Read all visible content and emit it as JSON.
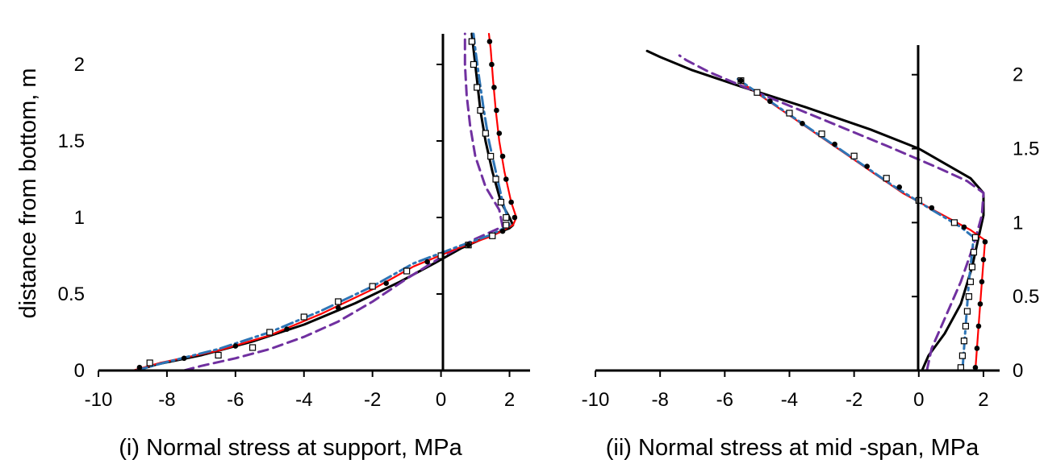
{
  "chart_data": [
    {
      "type": "line",
      "title": "",
      "xlabel": "(i) Normal stress at support, MPa",
      "ylabel": "distance from bottom, m",
      "xlim": [
        -10,
        2.6
      ],
      "ylim": [
        0,
        2.2
      ],
      "x_ticks": [
        -10,
        -8,
        -6,
        -4,
        -2,
        0,
        2
      ],
      "y_ticks": [
        0,
        0.5,
        1,
        1.5,
        2
      ],
      "x_tick_labels": [
        "-10",
        "-8",
        "-6",
        "-4",
        "-2",
        "0",
        "2"
      ],
      "y_tick_labels": [
        "0",
        "0.5",
        "1",
        "1.5",
        "2"
      ],
      "grid": false,
      "legend": "none",
      "series": [
        {
          "style": "solid",
          "color": "#000000",
          "points": [
            [
              -8.9,
              0
            ],
            [
              -8.3,
              0.04
            ],
            [
              -7.0,
              0.1
            ],
            [
              -5.5,
              0.19
            ],
            [
              -4.0,
              0.3
            ],
            [
              -2.5,
              0.44
            ],
            [
              -1.2,
              0.58
            ],
            [
              -0.2,
              0.7
            ],
            [
              0.6,
              0.8
            ],
            [
              1.3,
              0.87
            ],
            [
              2.0,
              0.93
            ],
            [
              2.1,
              0.95
            ],
            [
              2.0,
              1.0
            ],
            [
              1.75,
              1.1
            ],
            [
              1.5,
              1.3
            ],
            [
              1.3,
              1.5
            ],
            [
              1.15,
              1.7
            ],
            [
              1.05,
              1.9
            ],
            [
              0.95,
              2.1
            ],
            [
              0.9,
              2.2
            ]
          ]
        },
        {
          "style": "dashed",
          "color": "#7030A0",
          "points": [
            [
              -7.5,
              0
            ],
            [
              -7.0,
              0.03
            ],
            [
              -6.0,
              0.08
            ],
            [
              -5.0,
              0.14
            ],
            [
              -4.0,
              0.22
            ],
            [
              -3.0,
              0.32
            ],
            [
              -2.0,
              0.45
            ],
            [
              -1.0,
              0.6
            ],
            [
              0.0,
              0.74
            ],
            [
              1.0,
              0.86
            ],
            [
              1.8,
              0.94
            ],
            [
              1.7,
              1.05
            ],
            [
              1.3,
              1.2
            ],
            [
              1.0,
              1.4
            ],
            [
              0.85,
              1.6
            ],
            [
              0.75,
              1.8
            ],
            [
              0.7,
              2.0
            ],
            [
              0.7,
              2.2
            ]
          ]
        },
        {
          "style": "solid",
          "color": "#FF0000",
          "points": [
            [
              -9.0,
              0
            ],
            [
              -8.2,
              0.05
            ],
            [
              -6.5,
              0.13
            ],
            [
              -5.0,
              0.23
            ],
            [
              -3.5,
              0.37
            ],
            [
              -2.0,
              0.53
            ],
            [
              -0.8,
              0.68
            ],
            [
              0.5,
              0.8
            ],
            [
              1.5,
              0.88
            ],
            [
              2.1,
              0.95
            ],
            [
              2.2,
              1.0
            ],
            [
              2.05,
              1.1
            ],
            [
              1.85,
              1.3
            ],
            [
              1.7,
              1.5
            ],
            [
              1.6,
              1.7
            ],
            [
              1.52,
              1.9
            ],
            [
              1.45,
              2.1
            ],
            [
              1.4,
              2.2
            ]
          ]
        },
        {
          "style": "dashdot",
          "color": "#2E75B6",
          "points": [
            [
              -8.9,
              0
            ],
            [
              -8.1,
              0.05
            ],
            [
              -6.5,
              0.14
            ],
            [
              -5.0,
              0.25
            ],
            [
              -3.5,
              0.39
            ],
            [
              -2.0,
              0.55
            ],
            [
              -0.8,
              0.7
            ],
            [
              0.5,
              0.81
            ],
            [
              1.5,
              0.89
            ],
            [
              2.0,
              0.95
            ],
            [
              1.95,
              1.0
            ],
            [
              1.8,
              1.1
            ],
            [
              1.6,
              1.3
            ],
            [
              1.4,
              1.5
            ],
            [
              1.25,
              1.7
            ],
            [
              1.12,
              1.9
            ],
            [
              1.0,
              2.1
            ],
            [
              0.95,
              2.2
            ]
          ]
        },
        {
          "style": "markers-open-square",
          "color": "#000000",
          "points": [
            [
              -8.5,
              0.05
            ],
            [
              -6.5,
              0.1
            ],
            [
              -5.5,
              0.15
            ],
            [
              -5.0,
              0.25
            ],
            [
              -4.0,
              0.35
            ],
            [
              -3.0,
              0.45
            ],
            [
              -2.0,
              0.55
            ],
            [
              -1.0,
              0.65
            ],
            [
              0.0,
              0.75
            ],
            [
              0.8,
              0.82
            ],
            [
              1.5,
              0.88
            ],
            [
              1.9,
              0.95
            ],
            [
              1.9,
              1.0
            ],
            [
              1.75,
              1.1
            ],
            [
              1.6,
              1.25
            ],
            [
              1.45,
              1.4
            ],
            [
              1.3,
              1.55
            ],
            [
              1.15,
              1.7
            ],
            [
              1.05,
              1.85
            ],
            [
              0.95,
              2.0
            ],
            [
              0.9,
              2.15
            ]
          ]
        },
        {
          "style": "markers-filled-circle",
          "color": "#000000",
          "points": [
            [
              -8.8,
              0.02
            ],
            [
              -7.5,
              0.08
            ],
            [
              -6.0,
              0.16
            ],
            [
              -4.5,
              0.27
            ],
            [
              -3.0,
              0.41
            ],
            [
              -1.6,
              0.57
            ],
            [
              -0.4,
              0.71
            ],
            [
              0.8,
              0.82
            ],
            [
              1.8,
              0.91
            ],
            [
              2.15,
              1.0
            ],
            [
              2.05,
              1.1
            ],
            [
              1.9,
              1.25
            ],
            [
              1.8,
              1.4
            ],
            [
              1.7,
              1.55
            ],
            [
              1.62,
              1.7
            ],
            [
              1.55,
              1.85
            ],
            [
              1.48,
              2.0
            ],
            [
              1.42,
              2.15
            ]
          ]
        }
      ]
    },
    {
      "type": "line",
      "title": "",
      "xlabel": "(ii) Normal stress at mid -span, MPa",
      "ylabel": "",
      "xlim": [
        -10,
        2.5
      ],
      "ylim": [
        0,
        2.2
      ],
      "x_ticks": [
        -10,
        -8,
        -6,
        -4,
        -2,
        0,
        2
      ],
      "y_ticks": [
        0,
        0.5,
        1,
        1.5,
        2
      ],
      "x_tick_labels": [
        "-10",
        "-8",
        "-6",
        "-4",
        "-2",
        "0",
        "2"
      ],
      "y_tick_labels": [
        "0",
        "0.5",
        "1",
        "1.5",
        "2"
      ],
      "grid": false,
      "legend": "none",
      "series": [
        {
          "style": "solid",
          "color": "#000000",
          "points": [
            [
              0.1,
              0
            ],
            [
              0.3,
              0.1
            ],
            [
              0.8,
              0.25
            ],
            [
              1.3,
              0.45
            ],
            [
              1.65,
              0.7
            ],
            [
              1.85,
              0.9
            ],
            [
              2.0,
              1.05
            ],
            [
              2.0,
              1.2
            ],
            [
              1.6,
              1.3
            ],
            [
              0.8,
              1.4
            ],
            [
              0.0,
              1.5
            ],
            [
              -1.5,
              1.63
            ],
            [
              -3.5,
              1.78
            ],
            [
              -5.5,
              1.92
            ],
            [
              -7.0,
              2.03
            ],
            [
              -8.0,
              2.12
            ],
            [
              -8.4,
              2.16
            ]
          ]
        },
        {
          "style": "dashed",
          "color": "#7030A0",
          "points": [
            [
              0.25,
              0
            ],
            [
              0.4,
              0.15
            ],
            [
              0.8,
              0.35
            ],
            [
              1.3,
              0.6
            ],
            [
              1.7,
              0.85
            ],
            [
              1.95,
              1.05
            ],
            [
              2.0,
              1.2
            ],
            [
              1.5,
              1.28
            ],
            [
              0.5,
              1.38
            ],
            [
              -1.0,
              1.52
            ],
            [
              -3.0,
              1.7
            ],
            [
              -5.0,
              1.88
            ],
            [
              -6.5,
              2.02
            ],
            [
              -7.2,
              2.1
            ],
            [
              -7.4,
              2.13
            ]
          ]
        },
        {
          "style": "solid",
          "color": "#FF0000",
          "points": [
            [
              1.75,
              0
            ],
            [
              1.85,
              0.3
            ],
            [
              1.95,
              0.6
            ],
            [
              2.05,
              0.88
            ],
            [
              1.6,
              0.95
            ],
            [
              0.5,
              1.08
            ],
            [
              -0.5,
              1.2
            ],
            [
              -1.5,
              1.35
            ],
            [
              -2.5,
              1.5
            ],
            [
              -3.5,
              1.65
            ],
            [
              -4.5,
              1.8
            ],
            [
              -5.5,
              1.95
            ],
            [
              -5.6,
              1.97
            ]
          ]
        },
        {
          "style": "dashdot",
          "color": "#2E75B6",
          "points": [
            [
              1.35,
              0
            ],
            [
              1.45,
              0.3
            ],
            [
              1.55,
              0.6
            ],
            [
              1.7,
              0.9
            ],
            [
              1.3,
              0.97
            ],
            [
              0.3,
              1.1
            ],
            [
              -0.8,
              1.25
            ],
            [
              -1.8,
              1.4
            ],
            [
              -2.8,
              1.55
            ],
            [
              -3.8,
              1.7
            ],
            [
              -4.8,
              1.85
            ],
            [
              -5.6,
              1.97
            ]
          ]
        },
        {
          "style": "markers-open-square",
          "color": "#000000",
          "points": [
            [
              1.3,
              0.02
            ],
            [
              1.35,
              0.1
            ],
            [
              1.4,
              0.2
            ],
            [
              1.45,
              0.3
            ],
            [
              1.5,
              0.4
            ],
            [
              1.55,
              0.5
            ],
            [
              1.6,
              0.6
            ],
            [
              1.65,
              0.7
            ],
            [
              1.7,
              0.8
            ],
            [
              1.75,
              0.9
            ],
            [
              1.1,
              1.0
            ],
            [
              0.0,
              1.15
            ],
            [
              -1.0,
              1.3
            ],
            [
              -2.0,
              1.45
            ],
            [
              -3.0,
              1.6
            ],
            [
              -4.0,
              1.74
            ],
            [
              -5.0,
              1.88
            ],
            [
              -5.5,
              1.96
            ]
          ]
        },
        {
          "style": "markers-filled-circle",
          "color": "#000000",
          "points": [
            [
              1.75,
              0.02
            ],
            [
              1.8,
              0.15
            ],
            [
              1.85,
              0.3
            ],
            [
              1.9,
              0.45
            ],
            [
              1.95,
              0.6
            ],
            [
              2.0,
              0.75
            ],
            [
              2.05,
              0.87
            ],
            [
              1.4,
              0.97
            ],
            [
              0.4,
              1.1
            ],
            [
              -0.6,
              1.24
            ],
            [
              -1.6,
              1.38
            ],
            [
              -2.6,
              1.53
            ],
            [
              -3.6,
              1.67
            ],
            [
              -4.6,
              1.82
            ],
            [
              -5.5,
              1.96
            ]
          ]
        }
      ]
    }
  ]
}
